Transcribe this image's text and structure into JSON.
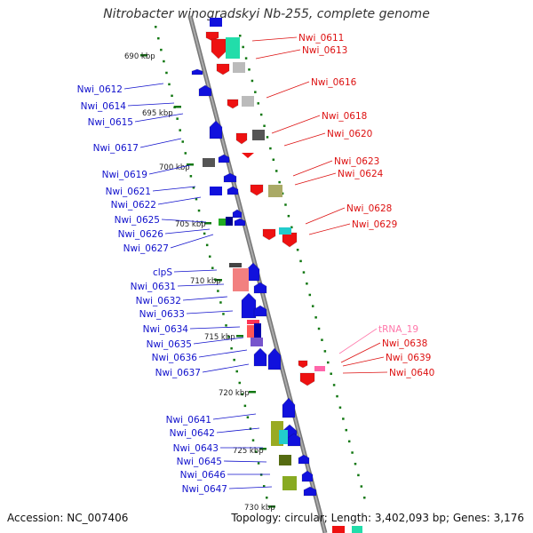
{
  "title": "Nitrobacter winogradskyi Nb-255, complete genome",
  "footer": {
    "accession": "Accession: NC_007406",
    "summary": "Topology: circular; Length: 3,402,093 bp; Genes: 3,176"
  },
  "colors": {
    "forward": "#ee1111",
    "reverse": "#1111dd",
    "rna": "#ff66aa",
    "backbone": "#888888",
    "tick": "#117711"
  },
  "scale_labels": [
    "690 kbp",
    "695 kbp",
    "700 kbp",
    "705 kbp",
    "710 kbp",
    "715 kbp",
    "720 kbp",
    "725 kbp",
    "730 kbp"
  ],
  "left_labels": [
    "Nwi_0612",
    "Nwi_0614",
    "Nwi_0615",
    "Nwi_0617",
    "Nwi_0619",
    "Nwi_0621",
    "Nwi_0622",
    "Nwi_0625",
    "Nwi_0626",
    "Nwi_0627",
    "clpS",
    "Nwi_0631",
    "Nwi_0632",
    "Nwi_0633",
    "Nwi_0634",
    "Nwi_0635",
    "Nwi_0636",
    "Nwi_0637",
    "Nwi_0641",
    "Nwi_0642",
    "Nwi_0643",
    "Nwi_0645",
    "Nwi_0646",
    "Nwi_0647"
  ],
  "right_labels": [
    "Nwi_0611",
    "Nwi_0613",
    "Nwi_0616",
    "Nwi_0618",
    "Nwi_0620",
    "Nwi_0623",
    "Nwi_0624",
    "Nwi_0628",
    "Nwi_0629",
    "tRNA_19",
    "Nwi_0638",
    "Nwi_0639",
    "Nwi_0640"
  ]
}
